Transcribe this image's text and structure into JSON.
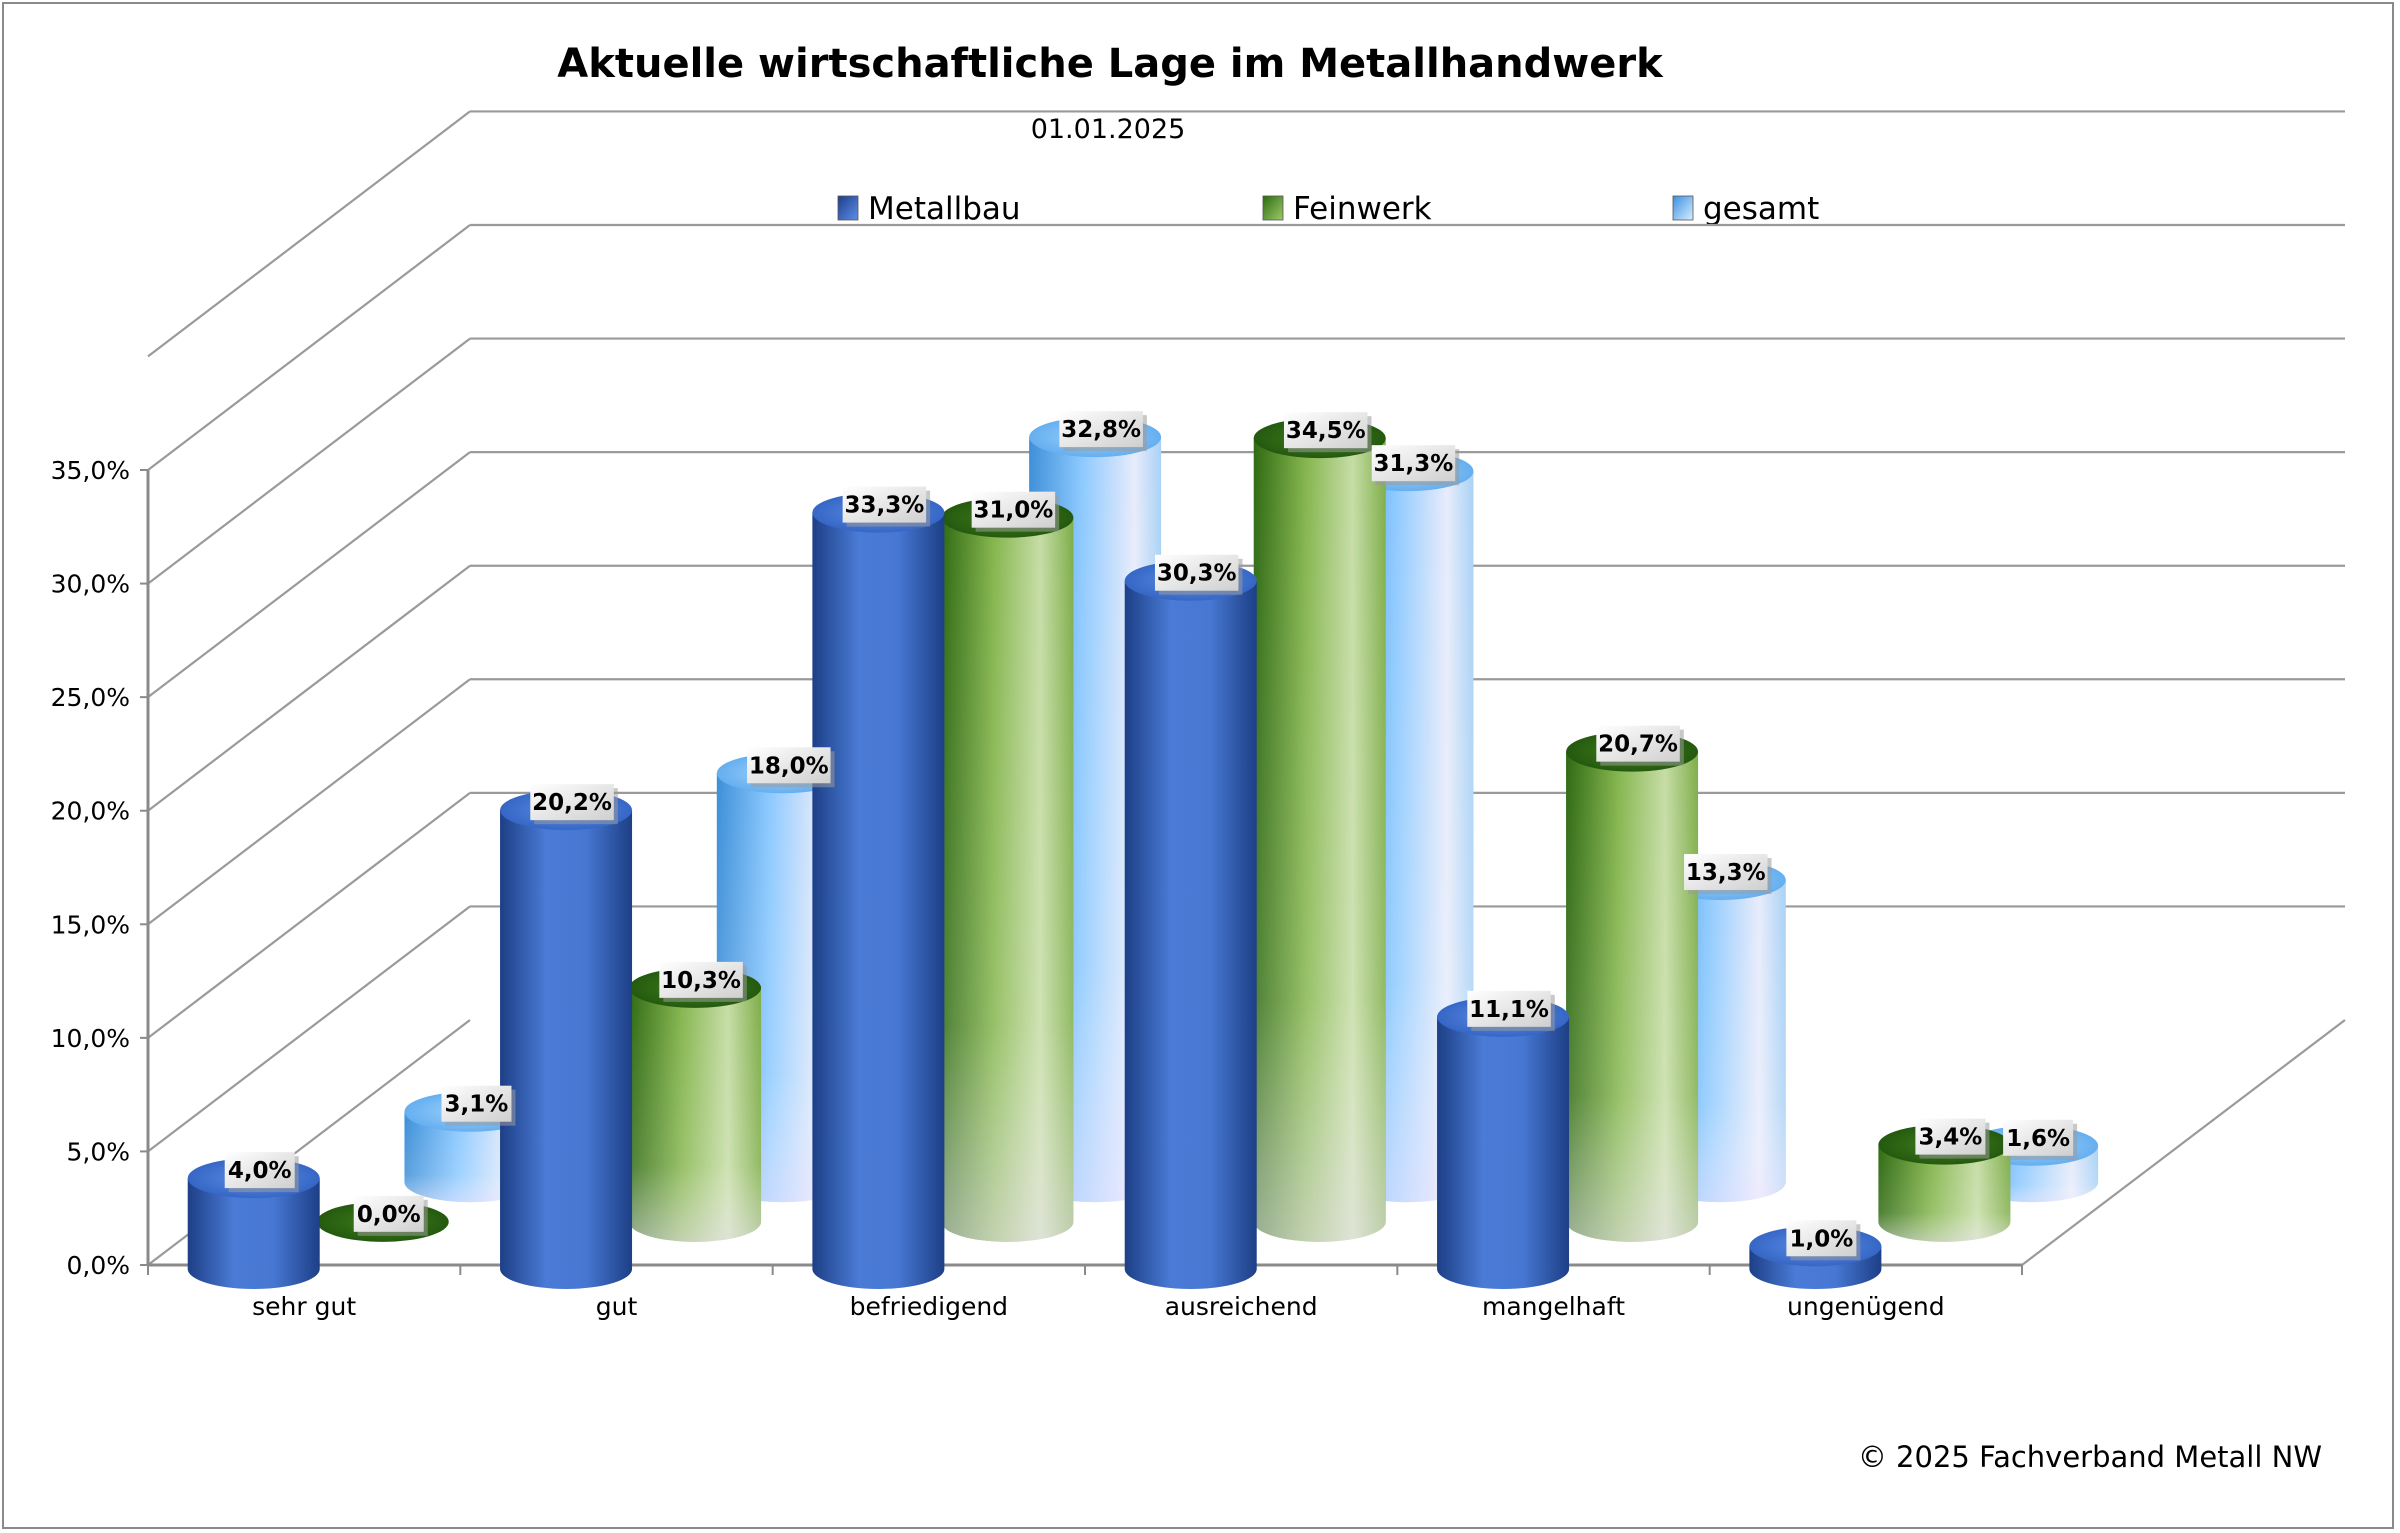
{
  "chart_data": {
    "type": "bar",
    "title": "Aktuelle wirtschaftliche Lage im Metallhandwerk",
    "subtitle": "01.01.2025",
    "categories": [
      "sehr gut",
      "gut",
      "befriedigend",
      "ausreichend",
      "mangelhaft",
      "ungenügend"
    ],
    "series": [
      {
        "name": "Metallbau",
        "values": [
          4.0,
          20.2,
          33.3,
          30.3,
          11.1,
          1.0
        ],
        "labels": [
          "4,0%",
          "20,2%",
          "33,3%",
          "30,3%",
          "11,1%",
          "1,0%"
        ],
        "color": "#3a68c4"
      },
      {
        "name": "Feinwerk",
        "values": [
          0.0,
          10.3,
          31.0,
          34.5,
          20.7,
          3.4
        ],
        "labels": [
          "0,0%",
          "10,3%",
          "31,0%",
          "34,5%",
          "20,7%",
          "3,4%"
        ],
        "color": "#6ea83a"
      },
      {
        "name": "gesamt",
        "values": [
          3.1,
          18.0,
          32.8,
          31.3,
          13.3,
          1.6
        ],
        "labels": [
          "3,1%",
          "18,0%",
          "32,8%",
          "31,3%",
          "13,3%",
          "1,6%"
        ],
        "color": "#6fb8f5"
      }
    ],
    "ylim": [
      0,
      35
    ],
    "yticks": [
      "0,0%",
      "5,0%",
      "10,0%",
      "15,0%",
      "20,0%",
      "25,0%",
      "30,0%",
      "35,0%"
    ],
    "grid": true,
    "legend": "top"
  },
  "footer": {
    "copyright": "© 2025 Fachverband Metall NW"
  }
}
